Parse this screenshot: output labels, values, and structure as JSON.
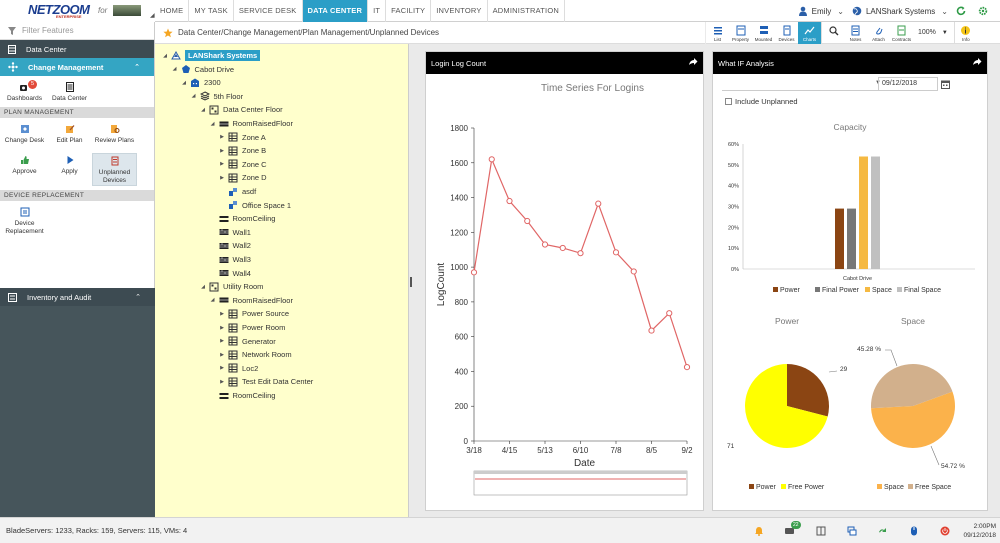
{
  "brand": {
    "name": "NETZOOM",
    "sub": "ENTERPRISE",
    "for": "for"
  },
  "nav": {
    "items": [
      "HOME",
      "MY TASK",
      "SERVICE DESK",
      "DATA CENTER",
      "IT",
      "FACILITY",
      "INVENTORY",
      "ADMINISTRATION"
    ],
    "active": 3
  },
  "user": {
    "name": "Emily",
    "org": "LANShark Systems"
  },
  "sidebar": {
    "filter_placeholder": "Filter Features",
    "data_center": "Data Center",
    "change_management": "Change Management",
    "dash_tiles": [
      {
        "label": "Dashboards",
        "badge": "5"
      },
      {
        "label": "Data Center"
      }
    ],
    "plan_management": "PLAN MANAGEMENT",
    "plan_tiles": [
      {
        "label": "Change Desk"
      },
      {
        "label": "Edit Plan"
      },
      {
        "label": "Review Plans"
      },
      {
        "label": "Approve"
      },
      {
        "label": "Apply"
      },
      {
        "label": "Unplanned Devices"
      }
    ],
    "device_replacement": "DEVICE REPLACEMENT",
    "device_tiles": [
      {
        "label": "Device Replacement"
      }
    ],
    "inventory_audit": "Inventory and Audit"
  },
  "breadcrumb": "Data Center/Change Management/Plan Management/Unplanned Devices",
  "toolbar": {
    "items": [
      "List",
      "Property",
      "Mounted",
      "Devices",
      "Charts",
      "",
      "Notes",
      "Attach",
      "Contracts"
    ],
    "zoom": "100%",
    "info": "Info"
  },
  "tree": [
    {
      "label": "LANShark Systems",
      "level": 0,
      "toggle": "◢",
      "icon": "company-icon",
      "selected": true
    },
    {
      "label": "Cabot Drive",
      "level": 1,
      "toggle": "◢",
      "icon": "site-icon"
    },
    {
      "label": "2300",
      "level": 2,
      "toggle": "◢",
      "icon": "building-icon"
    },
    {
      "label": "5th Floor",
      "level": 3,
      "toggle": "◢",
      "icon": "floor-icon"
    },
    {
      "label": "Data Center Floor",
      "level": 4,
      "toggle": "◢",
      "icon": "room-icon"
    },
    {
      "label": "RoomRaisedFloor",
      "level": 5,
      "toggle": "◢",
      "icon": "raisedfloor-icon"
    },
    {
      "label": "Zone A",
      "level": 6,
      "toggle": "▶",
      "icon": "zone-icon"
    },
    {
      "label": "Zone B",
      "level": 6,
      "toggle": "▶",
      "icon": "zone-icon"
    },
    {
      "label": "Zone C",
      "level": 6,
      "toggle": "▶",
      "icon": "zone-icon"
    },
    {
      "label": "Zone D",
      "level": 6,
      "toggle": "▶",
      "icon": "zone-icon"
    },
    {
      "label": "asdf",
      "level": 6,
      "toggle": "",
      "icon": "space-icon"
    },
    {
      "label": "Office Space 1",
      "level": 6,
      "toggle": "",
      "icon": "space-icon"
    },
    {
      "label": "RoomCeiling",
      "level": 5,
      "toggle": "",
      "icon": "ceiling-icon"
    },
    {
      "label": "Wall1",
      "level": 5,
      "toggle": "",
      "icon": "wall-icon"
    },
    {
      "label": "Wall2",
      "level": 5,
      "toggle": "",
      "icon": "wall-icon"
    },
    {
      "label": "Wall3",
      "level": 5,
      "toggle": "",
      "icon": "wall-icon"
    },
    {
      "label": "Wall4",
      "level": 5,
      "toggle": "",
      "icon": "wall-icon"
    },
    {
      "label": "Utility Room",
      "level": 4,
      "toggle": "◢",
      "icon": "room-icon"
    },
    {
      "label": "RoomRaisedFloor",
      "level": 5,
      "toggle": "◢",
      "icon": "raisedfloor-icon"
    },
    {
      "label": "Power Source",
      "level": 6,
      "toggle": "▶",
      "icon": "zone-icon"
    },
    {
      "label": "Power Room",
      "level": 6,
      "toggle": "▶",
      "icon": "zone-icon"
    },
    {
      "label": "Generator",
      "level": 6,
      "toggle": "▶",
      "icon": "zone-icon"
    },
    {
      "label": "Network Room",
      "level": 6,
      "toggle": "▶",
      "icon": "zone-icon"
    },
    {
      "label": "Loc2",
      "level": 6,
      "toggle": "▶",
      "icon": "zone-icon"
    },
    {
      "label": "Test Edit Data Center",
      "level": 6,
      "toggle": "▶",
      "icon": "zone-icon"
    },
    {
      "label": "RoomCeiling",
      "level": 5,
      "toggle": "",
      "icon": "ceiling-icon"
    }
  ],
  "login_panel": {
    "title": "Login Log Count"
  },
  "whatif_panel": {
    "title": "What IF Analysis",
    "date": "09/12/2018",
    "include_unplanned": "Include Unplanned"
  },
  "chart_data": [
    {
      "type": "line",
      "title": "Time Series For Logins",
      "xlabel": "Date",
      "ylabel": "LogCount",
      "x": [
        "3/18",
        "3/25",
        "4/1",
        "4/8",
        "4/15",
        "4/22",
        "4/29",
        "5/6",
        "5/13",
        "5/20",
        "5/27",
        "6/3",
        "6/10",
        "6/17",
        "6/24",
        "7/1",
        "7/8",
        "7/15",
        "7/22",
        "7/29",
        "8/5",
        "8/12",
        "8/19",
        "8/26",
        "9/2"
      ],
      "y": [
        970,
        null,
        1620,
        null,
        1380,
        null,
        1265,
        null,
        1130,
        null,
        1110,
        null,
        1080,
        null,
        1365,
        null,
        1085,
        null,
        975,
        null,
        635,
        null,
        735,
        null,
        425
      ],
      "xticks": [
        "3/18",
        "4/15",
        "5/13",
        "6/10",
        "7/8",
        "8/5",
        "9/2"
      ],
      "yticks": [
        0,
        200,
        400,
        600,
        800,
        1000,
        1200,
        1400,
        1600,
        1800
      ],
      "ylim": [
        0,
        1800
      ],
      "color": "#e06666"
    },
    {
      "type": "bar",
      "title": "Capacity",
      "categories": [
        "Cabot Drive"
      ],
      "series": [
        {
          "name": "Power",
          "value": 29,
          "color": "#8b4513"
        },
        {
          "name": "Final Power",
          "value": 29,
          "color": "#777777"
        },
        {
          "name": "Space",
          "value": 54,
          "color": "#f5b942"
        },
        {
          "name": "Final Space",
          "value": 54,
          "color": "#c0c0c0"
        }
      ],
      "yticks": [
        "0%",
        "10%",
        "20%",
        "30%",
        "40%",
        "50%",
        "60%"
      ],
      "ylim": [
        0,
        60
      ],
      "legend": "bottom"
    },
    {
      "type": "pie",
      "title": "Power",
      "slices": [
        {
          "name": "Power",
          "value": 29,
          "label": "29",
          "color": "#8b4513"
        },
        {
          "name": "Free Power",
          "value": 71,
          "label": "71",
          "color": "#ffff00"
        }
      ],
      "legend": "bottom"
    },
    {
      "type": "pie",
      "title": "Space",
      "slices": [
        {
          "name": "Space",
          "value": 54.72,
          "label": "54.72 %",
          "color": "#fbb24b"
        },
        {
          "name": "Free Space",
          "value": 45.28,
          "label": "45.28 %",
          "color": "#d2b08c"
        }
      ],
      "legend": "bottom"
    }
  ],
  "status": {
    "text": "BladeServers: 1233, Racks: 159, Servers: 115, VMs: 4",
    "messages": "22",
    "time": "2:00PM",
    "date": "09/12/2018"
  }
}
